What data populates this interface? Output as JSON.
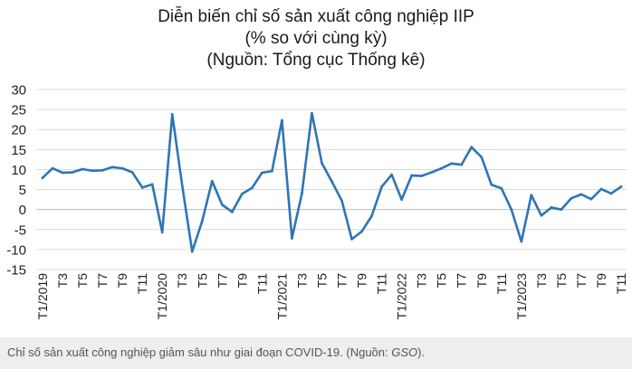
{
  "chart_data": {
    "type": "line",
    "title_lines": [
      "Diễn biến chỉ số sản xuất công nghiệp IIP",
      "(% so với cùng kỳ)",
      "(Nguồn: Tổng cục Thống kê)"
    ],
    "xlabel": "",
    "ylabel": "",
    "ylim": [
      -15,
      30
    ],
    "yticks": [
      -15,
      -10,
      -5,
      0,
      5,
      10,
      15,
      20,
      25,
      30
    ],
    "grid": "horizontal",
    "legend": "none",
    "line_color": "#2e75b6",
    "x": [
      "T1/2019",
      "T2",
      "T3",
      "T4",
      "T5",
      "T6",
      "T7",
      "T8",
      "T9",
      "T10",
      "T11",
      "T12",
      "T1/2020",
      "T2",
      "T3",
      "T4",
      "T5",
      "T6",
      "T7",
      "T8",
      "T9",
      "T10",
      "T11",
      "T12",
      "T1/2021",
      "T2",
      "T3",
      "T4",
      "T5",
      "T6",
      "T7",
      "T8",
      "T9",
      "T10",
      "T11",
      "T12",
      "T1/2022",
      "T2",
      "T3",
      "T4",
      "T5",
      "T6",
      "T7",
      "T8",
      "T9",
      "T10",
      "T11",
      "T12",
      "T1/2023",
      "T2",
      "T3",
      "T4",
      "T5",
      "T6",
      "T7",
      "T8",
      "T9",
      "T10",
      "T11"
    ],
    "x_tick_labels": [
      "T1/2019",
      "",
      "T3",
      "",
      "T5",
      "",
      "T7",
      "",
      "T9",
      "",
      "T11",
      "",
      "T1/2020",
      "",
      "T3",
      "",
      "T5",
      "",
      "T7",
      "",
      "T9",
      "",
      "T11",
      "",
      "T1/2021",
      "",
      "T3",
      "",
      "T5",
      "",
      "T7",
      "",
      "T9",
      "",
      "T11",
      "",
      "T1/2022",
      "",
      "T3",
      "",
      "T5",
      "",
      "T7",
      "",
      "T9",
      "",
      "T11",
      "",
      "T1/2023",
      "",
      "T3",
      "",
      "T5",
      "",
      "T7",
      "",
      "T9",
      "",
      "T11"
    ],
    "values": [
      7.9,
      10.3,
      9.2,
      9.3,
      10.1,
      9.7,
      9.8,
      10.6,
      10.3,
      9.3,
      5.5,
      6.3,
      -5.7,
      23.8,
      6.0,
      -10.5,
      -2.9,
      7.1,
      1.2,
      -0.6,
      3.9,
      5.4,
      9.2,
      9.6,
      22.3,
      -7.2,
      4.0,
      24.1,
      11.6,
      7.0,
      2.2,
      -7.4,
      -5.5,
      -1.6,
      5.7,
      8.7,
      2.5,
      8.5,
      8.4,
      9.3,
      10.3,
      11.5,
      11.2,
      15.6,
      13.1,
      6.2,
      5.3,
      0.0,
      -8.0,
      3.6,
      -1.5,
      0.5,
      0.0,
      2.8,
      3.8,
      2.6,
      5.1,
      4.0,
      5.7
    ]
  },
  "caption": {
    "text_before": "Chỉ số sản xuất công nghiệp giảm sâu như giai đoạn COVID-19. (Nguồn: ",
    "source": "GSO",
    "text_after": ")."
  }
}
